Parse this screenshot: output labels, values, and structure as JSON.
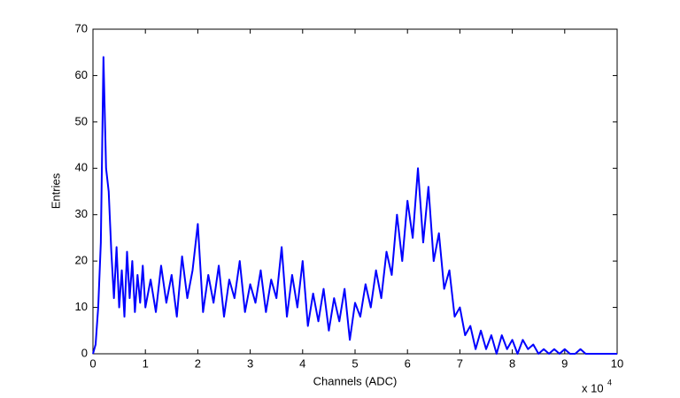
{
  "chart_data": {
    "type": "line",
    "x_label": "Channels (ADC)",
    "y_label": "Entries",
    "x_multiplier": "x 10",
    "x_multiplier_exponent": "4",
    "x": [
      0,
      0.05,
      0.1,
      0.15,
      0.2,
      0.25,
      0.3,
      0.35,
      0.4,
      0.45,
      0.5,
      0.55,
      0.6,
      0.65,
      0.7,
      0.75,
      0.8,
      0.85,
      0.9,
      0.95,
      1.0,
      1.1,
      1.2,
      1.3,
      1.4,
      1.5,
      1.6,
      1.7,
      1.8,
      1.9,
      2.0,
      2.1,
      2.2,
      2.3,
      2.4,
      2.5,
      2.6,
      2.7,
      2.8,
      2.9,
      3.0,
      3.1,
      3.2,
      3.3,
      3.4,
      3.5,
      3.6,
      3.7,
      3.8,
      3.9,
      4.0,
      4.1,
      4.2,
      4.3,
      4.4,
      4.5,
      4.6,
      4.7,
      4.8,
      4.9,
      5.0,
      5.1,
      5.2,
      5.3,
      5.4,
      5.5,
      5.6,
      5.7,
      5.8,
      5.9,
      6.0,
      6.1,
      6.2,
      6.3,
      6.4,
      6.5,
      6.6,
      6.7,
      6.8,
      6.9,
      7.0,
      7.1,
      7.2,
      7.3,
      7.4,
      7.5,
      7.6,
      7.7,
      7.8,
      7.9,
      8.0,
      8.1,
      8.2,
      8.3,
      8.4,
      8.5,
      8.6,
      8.7,
      8.8,
      8.9,
      9.0,
      9.1,
      9.2,
      9.3,
      9.4,
      9.5,
      9.6,
      9.7,
      9.8,
      9.9,
      10.0
    ],
    "series": [
      {
        "color": "#0000ff",
        "values": [
          0,
          2,
          10,
          24,
          64,
          40,
          35,
          22,
          12,
          23,
          10,
          18,
          8,
          22,
          12,
          20,
          9,
          17,
          11,
          19,
          10,
          16,
          9,
          19,
          11,
          17,
          8,
          21,
          12,
          18,
          28,
          9,
          17,
          11,
          19,
          8,
          16,
          12,
          20,
          9,
          15,
          11,
          18,
          9,
          16,
          12,
          23,
          8,
          17,
          10,
          20,
          6,
          13,
          7,
          14,
          5,
          12,
          7,
          14,
          3,
          11,
          8,
          15,
          10,
          18,
          12,
          22,
          17,
          30,
          20,
          33,
          25,
          40,
          24,
          36,
          20,
          26,
          14,
          18,
          8,
          10,
          4,
          6,
          1,
          5,
          1,
          4,
          0,
          4,
          1,
          3,
          0,
          3,
          1,
          2,
          0,
          1,
          0,
          1,
          0,
          1,
          0,
          0,
          1,
          0,
          0,
          0,
          0,
          0,
          0,
          0
        ]
      }
    ],
    "xlim": [
      0,
      10
    ],
    "xticks": [
      0,
      1,
      2,
      3,
      4,
      5,
      6,
      7,
      8,
      9,
      10
    ],
    "ylim": [
      0,
      70
    ],
    "yticks": [
      0,
      10,
      20,
      30,
      40,
      50,
      60,
      70
    ],
    "grid": false
  }
}
